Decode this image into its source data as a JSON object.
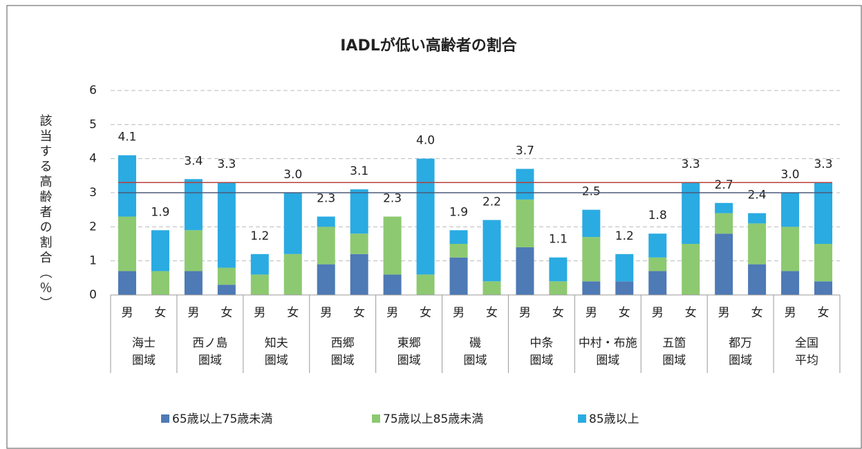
{
  "chart_data": {
    "type": "stacked_bar",
    "title": "IADLが低い高齢者の割合",
    "y_label": "該当する高齢者の割合（％）",
    "categories": [
      "男",
      "女",
      "男",
      "女",
      "男",
      "女",
      "男",
      "女",
      "男",
      "女",
      "男",
      "女",
      "男",
      "女",
      "男",
      "女",
      "男",
      "女",
      "男",
      "女",
      "男",
      "女"
    ],
    "groups": [
      [
        "海士",
        "圏域"
      ],
      [
        "西ノ島",
        "圏域"
      ],
      [
        "知夫",
        "圏域"
      ],
      [
        "西郷",
        "圏域"
      ],
      [
        "東郷",
        "圏域"
      ],
      [
        "磯",
        "圏域"
      ],
      [
        "中条",
        "圏域"
      ],
      [
        "中村・布施",
        "圏域"
      ],
      [
        "五箇",
        "圏域"
      ],
      [
        "都万",
        "圏域"
      ],
      [
        "全国",
        "平均"
      ]
    ],
    "series": [
      {
        "name": "65歳以上75歳未満",
        "color": "#4e7ab5",
        "values": [
          0.7,
          0,
          0.7,
          0.3,
          0,
          0,
          0.9,
          1.2,
          0.6,
          0,
          1.1,
          0,
          1.4,
          0,
          0.4,
          0.4,
          0.7,
          0,
          1.8,
          0.9,
          0.7,
          0.4
        ]
      },
      {
        "name": "75歳以上85歳未満",
        "color": "#8dc971",
        "values": [
          1.6,
          0.7,
          1.2,
          0.5,
          0.6,
          1.2,
          1.1,
          0.6,
          1.7,
          0.6,
          0.4,
          0.4,
          1.4,
          0.4,
          1.3,
          0,
          0.4,
          1.5,
          0.6,
          1.2,
          1.3,
          1.1
        ]
      },
      {
        "name": "85歳以上",
        "color": "#2aabe2",
        "values": [
          1.8,
          1.2,
          1.5,
          2.5,
          0.6,
          1.8,
          0.3,
          1.3,
          0,
          3.4,
          0.4,
          1.8,
          0.9,
          0.7,
          0.8,
          0.8,
          0.7,
          1.8,
          0.3,
          0.3,
          1.0,
          1.8
        ]
      }
    ],
    "totals": [
      4.1,
      1.9,
      3.4,
      3.3,
      1.2,
      3.0,
      2.3,
      3.1,
      2.3,
      4.0,
      1.9,
      2.2,
      3.7,
      1.1,
      2.5,
      1.2,
      1.8,
      3.3,
      2.7,
      2.4,
      3.0,
      3.3
    ],
    "total_labels": [
      "4.1",
      "1.9",
      "3.4",
      "3.3",
      "1.2",
      "3.0",
      "2.3",
      "3.1",
      "2.3",
      "4.0",
      "1.9",
      "2.2",
      "3.7",
      "1.1",
      "2.5",
      "1.2",
      "1.8",
      "3.3",
      "2.7",
      "2.4",
      "3.0",
      "3.3"
    ],
    "reference_lines": [
      {
        "value": 3.3,
        "color": "#b5403a"
      },
      {
        "value": 3.0,
        "color": "#4a5a78"
      }
    ],
    "ylim": [
      0,
      6
    ],
    "yticks": [
      0,
      1,
      2,
      3,
      4,
      5,
      6
    ],
    "grid": true
  }
}
